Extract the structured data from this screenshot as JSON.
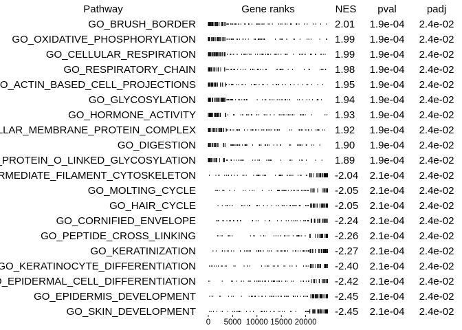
{
  "chart_data": {
    "type": "table",
    "headers": {
      "pathway": "Pathway",
      "gene_ranks": "Gene ranks",
      "nes": "NES",
      "pval": "pval",
      "padj": "padj"
    },
    "x_axis": {
      "ticks": [
        0,
        5000,
        10000,
        15000,
        20000
      ],
      "tick_labels": [
        "0",
        "5000",
        "10000",
        "15000",
        "20000"
      ],
      "range": [
        0,
        25000
      ]
    },
    "rows": [
      {
        "pathway": "GO_BRUSH_BORDER",
        "nes": "2.01",
        "pval": "1.9e-04",
        "padj": "2.4e-02",
        "direction": "up"
      },
      {
        "pathway": "GO_OXIDATIVE_PHOSPHORYLATION",
        "nes": "1.99",
        "pval": "1.9e-04",
        "padj": "2.4e-02",
        "direction": "up"
      },
      {
        "pathway": "GO_CELLULAR_RESPIRATION",
        "nes": "1.99",
        "pval": "1.9e-04",
        "padj": "2.4e-02",
        "direction": "up"
      },
      {
        "pathway": "GO_RESPIRATORY_CHAIN",
        "nes": "1.98",
        "pval": "1.9e-04",
        "padj": "2.4e-02",
        "direction": "up"
      },
      {
        "pathway": "GO_ACTIN_BASED_CELL_PROJECTIONS",
        "nes": "1.95",
        "pval": "1.9e-04",
        "padj": "2.4e-02",
        "direction": "up"
      },
      {
        "pathway": "GO_GLYCOSYLATION",
        "nes": "1.94",
        "pval": "1.9e-04",
        "padj": "2.4e-02",
        "direction": "up"
      },
      {
        "pathway": "GO_HORMONE_ACTIVITY",
        "nes": "1.93",
        "pval": "1.9e-04",
        "padj": "2.4e-02",
        "direction": "up"
      },
      {
        "pathway": "GO_INTRINSIC_COMPONENT_OF_ORGANELLAR_MEMBRANE_PROTEIN_COMPLEX",
        "nes": "1.92",
        "pval": "1.9e-04",
        "padj": "2.4e-02",
        "direction": "up"
      },
      {
        "pathway": "GO_DIGESTION",
        "nes": "1.90",
        "pval": "1.9e-04",
        "padj": "2.4e-02",
        "direction": "up"
      },
      {
        "pathway": "GO_PROTEIN_O_LINKED_GLYCOSYLATION",
        "nes": "1.89",
        "pval": "1.9e-04",
        "padj": "2.4e-02",
        "direction": "up"
      },
      {
        "pathway": "GO_INTERMEDIATE_FILAMENT_CYTOSKELETON",
        "nes": "-2.04",
        "pval": "2.1e-04",
        "padj": "2.4e-02",
        "direction": "down"
      },
      {
        "pathway": "GO_MOLTING_CYCLE",
        "nes": "-2.05",
        "pval": "2.1e-04",
        "padj": "2.4e-02",
        "direction": "down"
      },
      {
        "pathway": "GO_HAIR_CYCLE",
        "nes": "-2.05",
        "pval": "2.1e-04",
        "padj": "2.4e-02",
        "direction": "down"
      },
      {
        "pathway": "GO_CORNIFIED_ENVELOPE",
        "nes": "-2.24",
        "pval": "2.1e-04",
        "padj": "2.4e-02",
        "direction": "down"
      },
      {
        "pathway": "GO_PEPTIDE_CROSS_LINKING",
        "nes": "-2.26",
        "pval": "2.1e-04",
        "padj": "2.4e-02",
        "direction": "down"
      },
      {
        "pathway": "GO_KERATINIZATION",
        "nes": "-2.27",
        "pval": "2.1e-04",
        "padj": "2.4e-02",
        "direction": "down"
      },
      {
        "pathway": "GO_KERATINOCYTE_DIFFERENTIATION",
        "nes": "-2.40",
        "pval": "2.1e-04",
        "padj": "2.4e-02",
        "direction": "down"
      },
      {
        "pathway": "GO_EPIDERMAL_CELL_DIFFERENTIATION",
        "nes": "-2.42",
        "pval": "2.1e-04",
        "padj": "2.4e-02",
        "direction": "down"
      },
      {
        "pathway": "GO_EPIDERMIS_DEVELOPMENT",
        "nes": "-2.45",
        "pval": "2.1e-04",
        "padj": "2.4e-02",
        "direction": "down"
      },
      {
        "pathway": "GO_SKIN_DEVELOPMENT",
        "nes": "-2.45",
        "pval": "2.1e-04",
        "padj": "2.4e-02",
        "direction": "down"
      }
    ],
    "colors": {
      "text": "#000000",
      "ticks": "#000000",
      "background": "#ffffff"
    }
  }
}
